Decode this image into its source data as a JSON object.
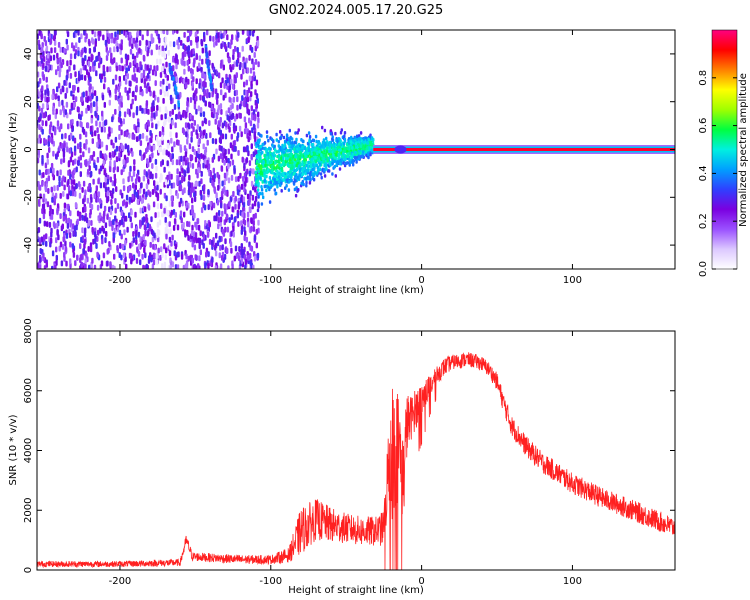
{
  "title": "GN02.2024.005.17.20.G25",
  "chart_data": [
    {
      "type": "heatmap",
      "xlabel": "Height of straight line (km)",
      "ylabel": "Frequency (Hz)",
      "xlim": [
        -255,
        168
      ],
      "ylim": [
        -50,
        50
      ],
      "xticks": [
        -200,
        -100,
        0,
        100
      ],
      "xtick_labels": [
        "-200",
        "-100",
        "0",
        "100"
      ],
      "yticks": [
        -40,
        -20,
        0,
        20,
        40
      ],
      "ytick_labels": [
        "-40",
        "-20",
        "0",
        "20",
        "40"
      ],
      "colorbar": {
        "label": "Normalized spectral amplitude",
        "range": [
          0,
          1
        ],
        "ticks": [
          0.0,
          0.2,
          0.4,
          0.6,
          0.8
        ],
        "tick_labels": [
          "0.0",
          "0.2",
          "0.4",
          "0.6",
          "0.8"
        ],
        "colormap": [
          "#ffffff",
          "#dcc8ff",
          "#9a50ff",
          "#7a00e0",
          "#2f40ff",
          "#00a0ff",
          "#00f0e0",
          "#00ff40",
          "#a0ff00",
          "#ffff00",
          "#ff8000",
          "#ff0000",
          "#ff0080"
        ]
      },
      "features": {
        "noise_region": [
          -255,
          -108
        ],
        "turbulent_region": [
          -110,
          -32
        ],
        "steady_line_region": [
          -32,
          168
        ],
        "steady_line_frequency": 0,
        "steady_line_amplitude": 0.95,
        "streaks": [
          {
            "x": [
              -167,
              -161
            ],
            "y": [
              35,
              20
            ]
          },
          {
            "x": [
              -143,
              -139
            ],
            "y": [
              42,
              25
            ]
          }
        ]
      },
      "grid": false
    },
    {
      "type": "line",
      "xlabel": "Height of straight line (km)",
      "ylabel": "SNR (10 * v/v)",
      "xlim": [
        -255,
        168
      ],
      "ylim": [
        0,
        8000
      ],
      "xticks": [
        -200,
        -100,
        0,
        100
      ],
      "xtick_labels": [
        "-200",
        "-100",
        "0",
        "100"
      ],
      "yticks": [
        0,
        2000,
        4000,
        6000,
        8000
      ],
      "ytick_labels": [
        "0",
        "2000",
        "4000",
        "6000",
        "8000"
      ],
      "color": "#ff2020",
      "grid": false,
      "series": [
        {
          "x": [
            -255,
            -200,
            -160,
            -156,
            -152,
            -120,
            -100,
            -88,
            -80,
            -70,
            -60,
            -50,
            -40,
            -30,
            -25,
            -22,
            -20,
            -15,
            -12,
            -10,
            -8,
            -5,
            0,
            5,
            10,
            15,
            20,
            25,
            30,
            35,
            40,
            45,
            50,
            55,
            60,
            70,
            80,
            100,
            120,
            140,
            168
          ],
          "y": [
            200,
            200,
            250,
            1000,
            450,
            350,
            350,
            500,
            1300,
            1700,
            1500,
            1400,
            1300,
            1300,
            1400,
            3500,
            4000,
            4200,
            3000,
            4800,
            5000,
            5300,
            5700,
            6100,
            6500,
            6800,
            6950,
            7000,
            7050,
            7000,
            6900,
            6700,
            6300,
            5500,
            4800,
            4100,
            3600,
            2900,
            2400,
            2000,
            1400
          ],
          "noise_amplitude": [
            100,
            100,
            120,
            200,
            150,
            150,
            150,
            250,
            800,
            700,
            600,
            500,
            500,
            500,
            600,
            1500,
            2500,
            1800,
            1500,
            1200,
            800,
            700,
            600,
            400,
            300,
            300,
            250,
            250,
            250,
            250,
            250,
            250,
            300,
            350,
            350,
            350,
            350,
            350,
            350,
            350,
            350
          ]
        }
      ]
    }
  ]
}
